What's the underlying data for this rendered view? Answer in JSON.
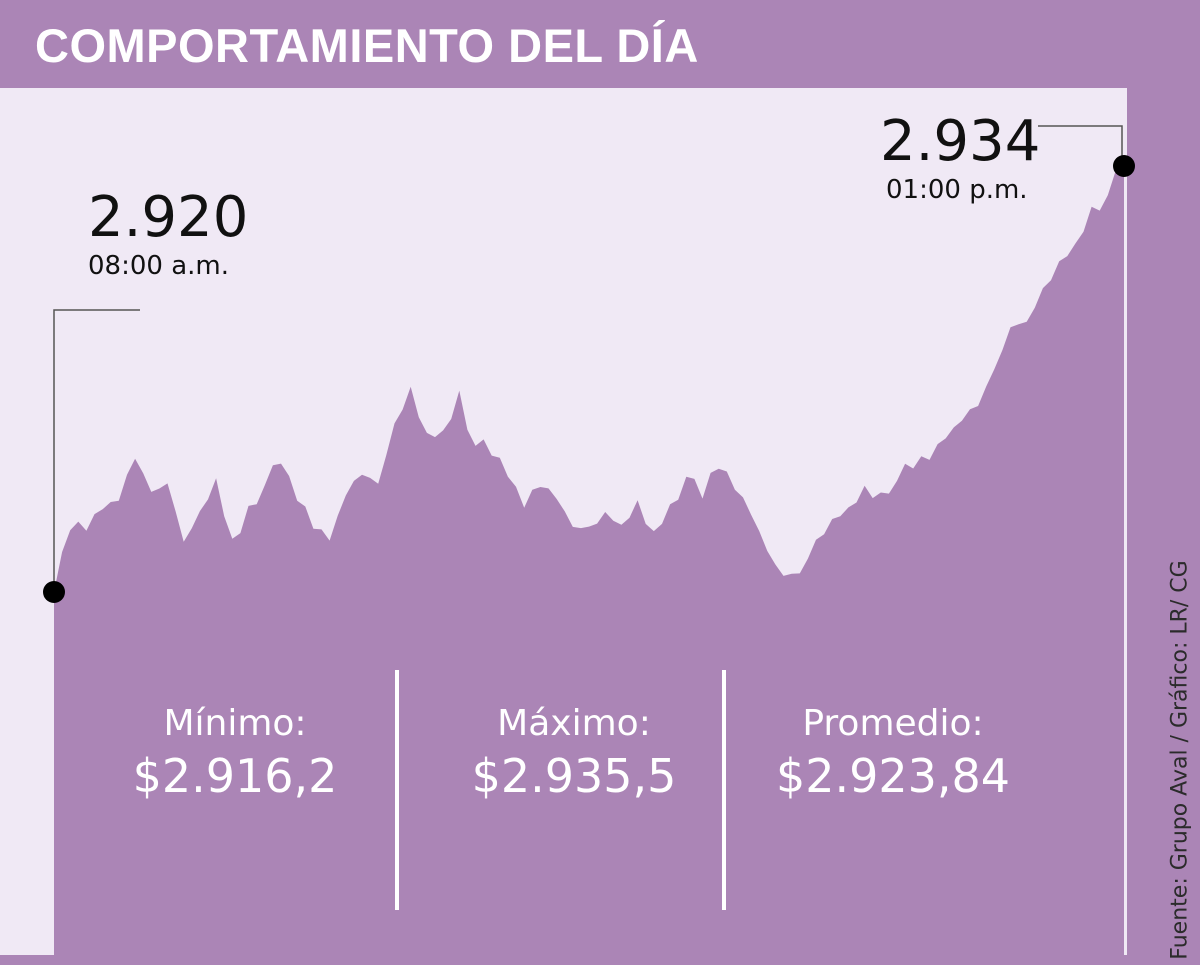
{
  "title": "COMPORTAMIENTO DEL DÍA",
  "colors": {
    "background": "#f0e9f5",
    "area": "#ab85b6",
    "frame": "#ab85b6",
    "marker": "#000000"
  },
  "chart_data": {
    "type": "area",
    "x_start": "08:00 a.m.",
    "x_end": "01:00 p.m.",
    "y_range_estimated": [
      2914.6,
      2936.6
    ],
    "series": [
      {
        "values": [
          2920.0,
          2922.0,
          2922.1,
          2922.6,
          2923.0,
          2924.5,
          2923.2,
          2923.6,
          2921.8,
          2922.6,
          2923.8,
          2921.6,
          2922.8,
          2923.6,
          2924.1,
          2923.0,
          2922.2,
          2921.6,
          2923.2,
          2924.0,
          2923.5,
          2925.6,
          2926.6,
          2925.2,
          2925.4,
          2926.5,
          2924.8,
          2924.6,
          2923.7,
          2922.8,
          2923.6,
          2923.0,
          2922.2,
          2922.0,
          2922.6,
          2922.3,
          2922.9,
          2922.0,
          2923.0,
          2923.7,
          2923.1,
          2924.2,
          2923.3,
          2922.6,
          2921.2,
          2920.5,
          2920.7,
          2921.6,
          2922.4,
          2922.9,
          2923.4,
          2923.3,
          2923.8,
          2924.0,
          2924.4,
          2924.9,
          2925.6,
          2926.2,
          2927.2,
          2928.7,
          2929.0,
          2929.9,
          2930.9,
          2931.6,
          2932.6,
          2933.1,
          2934.0
        ]
      }
    ],
    "annotations": [
      {
        "value": "2.920",
        "time": "08:00 a.m."
      },
      {
        "value": "2.934",
        "time": "01:00 p.m."
      }
    ]
  },
  "stats": [
    {
      "label": "Mínimo:",
      "value": "$2.916,2"
    },
    {
      "label": "Máximo:",
      "value": "$2.935,5"
    },
    {
      "label": "Promedio:",
      "value": "$2.923,84"
    }
  ],
  "source": "Fuente: Grupo Aval  / Gráfico: LR/ CG"
}
